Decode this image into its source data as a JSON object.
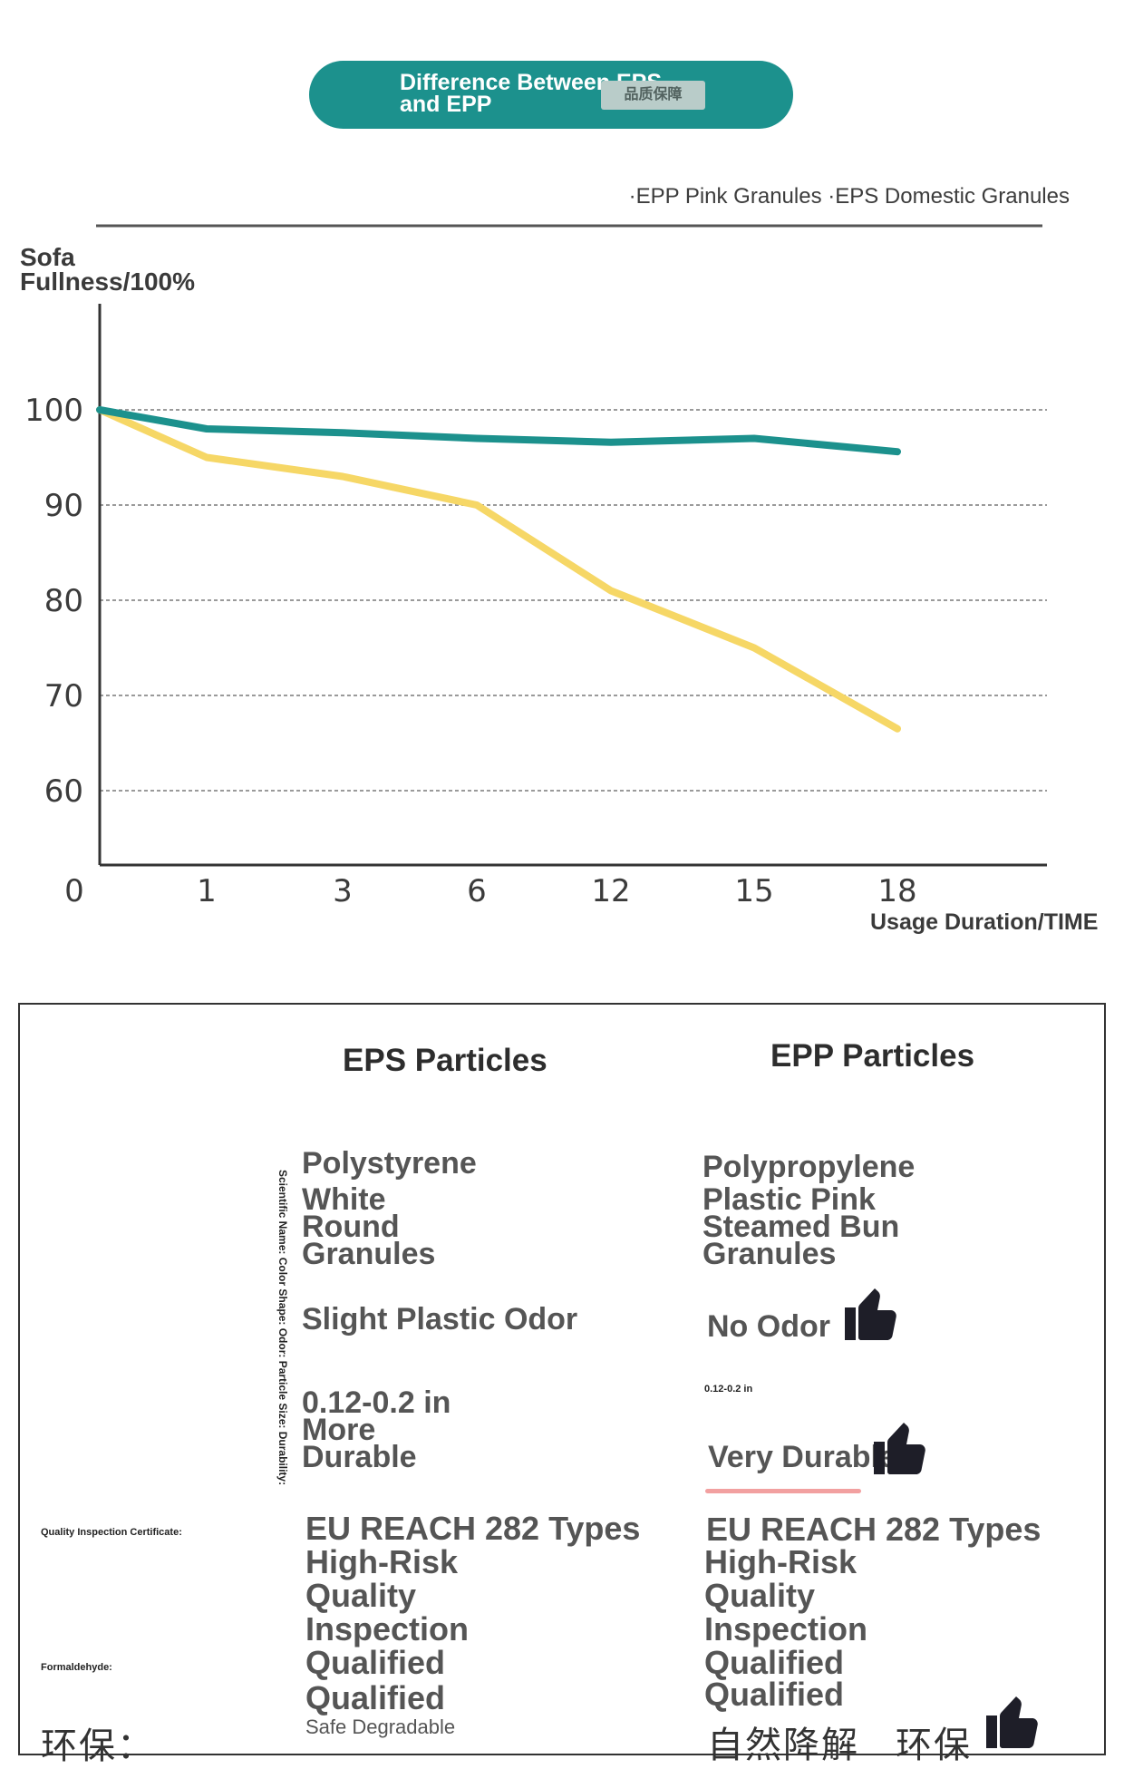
{
  "header": {
    "title": "Difference Between EPS and EPP",
    "stamp": "品质保障"
  },
  "legend": {
    "text": "·EPP Pink Granules ·EPS Domestic Granules"
  },
  "colors": {
    "teal": "#1c918d",
    "yellow": "#f6d766",
    "grid": "#9a9a9a",
    "axis": "#333333"
  },
  "chart_data": {
    "type": "line",
    "ylabel": "Sofa Fullness/100%",
    "xlabel": "Usage Duration/TIME",
    "categories": [
      "0",
      "1",
      "3",
      "6",
      "12",
      "15",
      "18"
    ],
    "yticks": [
      100,
      90,
      80,
      70,
      60
    ],
    "ylim": [
      52,
      112
    ],
    "grid": true,
    "legend_position": "top-right",
    "series": [
      {
        "color": "#1c918d",
        "points": [
          [
            0,
            100
          ],
          [
            1,
            98
          ],
          [
            3,
            97.6
          ],
          [
            6,
            97
          ],
          [
            12,
            96.6
          ],
          [
            15,
            97
          ],
          [
            18,
            95.6
          ]
        ]
      },
      {
        "color": "#f6d766",
        "points": [
          [
            0,
            100
          ],
          [
            1,
            95
          ],
          [
            3,
            93
          ],
          [
            6,
            90
          ],
          [
            12,
            81
          ],
          [
            15,
            75
          ],
          [
            18,
            66.5
          ]
        ]
      }
    ]
  },
  "table": {
    "eps_header": "EPS Particles",
    "epp_header": "EPP Particles",
    "row_labels_vertical": "Scientific Name: Color Shape: Odor: Particle Size: Durability:",
    "quality_label": "Quality Inspection Certificate:",
    "formaldehyde_label": "Formaldehyde:",
    "eco_label": "环保：",
    "eps": {
      "name_line1": "Polystyrene",
      "color_shape": "White Round Granules",
      "odor": "Slight Plastic Odor",
      "size_durability": "0.12-0.2 in More Durable",
      "quality": "EU REACH 282 Types",
      "quality_cont": "High-Risk Quality Inspection Qualified",
      "formaldehyde": "Qualified",
      "eco": "Safe Degradable"
    },
    "epp": {
      "name": "Polypropylene",
      "color_shape": "Plastic Pink Steamed Bun Granules",
      "odor": "No Odor",
      "size": "0.12-0.2 in",
      "durability": "Very Durable",
      "quality": "EU REACH 282 Types",
      "quality_cont": "High-Risk Quality Inspection Qualified",
      "formaldehyde": "Qualified",
      "eco_1": "自然降解",
      "eco_2": "环保"
    }
  }
}
